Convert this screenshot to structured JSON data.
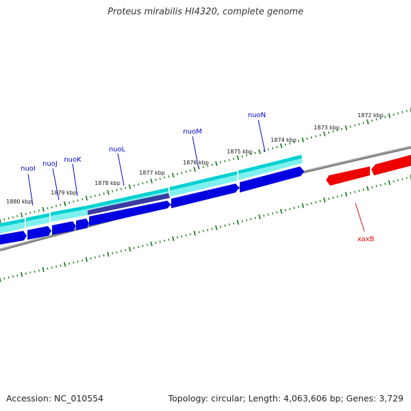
{
  "title": "Proteus mirabilis HI4320, complete genome",
  "footer": {
    "accession": "Accession: NC_010554",
    "summary": "Topology: circular; Length: 4,063,606 bp; Genes: 3,729"
  },
  "colors": {
    "background": "#ffffff",
    "backbone": "#808080",
    "ticks": "#1e7d1e",
    "forward_cds": "#00e5e5",
    "reverse_cds": "#0000e0",
    "selected_cds": "#3a3aa0",
    "red_cds": "#ff0000",
    "label_blue": "#0000cc",
    "label_red": "#ee0000"
  },
  "kbp_labels": [
    "1880 kbp",
    "1879 kbp",
    "1878 kbp",
    "1877 kbp",
    "1876 kbp",
    "1875 kbp",
    "1874 kbp",
    "1873 kbp",
    "1872 kbp"
  ],
  "genes": [
    {
      "name": "nuoI",
      "color": "#0000cc"
    },
    {
      "name": "nuoJ",
      "color": "#0000cc"
    },
    {
      "name": "nuoK",
      "color": "#0000cc"
    },
    {
      "name": "nuoL",
      "color": "#0000cc"
    },
    {
      "name": "nuoM",
      "color": "#0000cc"
    },
    {
      "name": "nuoN",
      "color": "#0000cc"
    },
    {
      "name": "xaxB",
      "color": "#ee0000"
    }
  ]
}
